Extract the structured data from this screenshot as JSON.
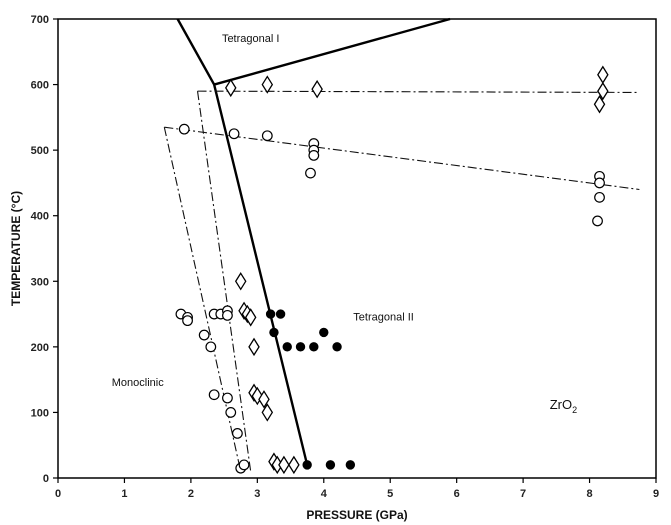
{
  "chart_data": {
    "type": "scatter",
    "xlabel": "PRESSURE (GPa)",
    "ylabel": "TEMPERATURE (°C)",
    "xlim": [
      0,
      9
    ],
    "ylim": [
      0,
      700
    ],
    "x_ticks": [
      "0",
      "1",
      "2",
      "3",
      "4",
      "5",
      "6",
      "7",
      "8",
      "9"
    ],
    "y_ticks": [
      "0",
      "100",
      "200",
      "300",
      "400",
      "500",
      "600",
      "700"
    ],
    "grid": false,
    "annotations": [
      {
        "text": "Tetragonal I",
        "x": 2.9,
        "y": 665
      },
      {
        "text": "Tetragonal II",
        "x": 4.9,
        "y": 240
      },
      {
        "text": "Monoclinic",
        "x": 1.2,
        "y": 140
      }
    ],
    "compound": {
      "main": "ZrO",
      "sub": "2",
      "x": 7.4,
      "y": 105
    },
    "phase_boundaries": [
      {
        "style": "solid",
        "points": [
          [
            1.8,
            700
          ],
          [
            2.35,
            600
          ],
          [
            3.75,
            20
          ]
        ]
      },
      {
        "style": "solid",
        "points": [
          [
            2.35,
            600
          ],
          [
            5.9,
            700
          ]
        ]
      }
    ],
    "dash_dot_lines": [
      {
        "points": [
          [
            2.1,
            590
          ],
          [
            8.75,
            588
          ]
        ]
      },
      {
        "points": [
          [
            2.1,
            590
          ],
          [
            2.9,
            10
          ]
        ]
      },
      {
        "points": [
          [
            1.6,
            535
          ],
          [
            8.75,
            440
          ]
        ]
      },
      {
        "points": [
          [
            1.6,
            535
          ],
          [
            2.75,
            10
          ]
        ]
      }
    ],
    "series": [
      {
        "marker": "open-circle",
        "points": [
          [
            1.9,
            532
          ],
          [
            2.65,
            525
          ],
          [
            3.15,
            522
          ],
          [
            3.85,
            510
          ],
          [
            3.85,
            500
          ],
          [
            3.85,
            492
          ],
          [
            3.8,
            465
          ],
          [
            8.15,
            460
          ],
          [
            8.15,
            450
          ],
          [
            8.15,
            428
          ],
          [
            8.12,
            392
          ],
          [
            1.85,
            250
          ],
          [
            1.95,
            245
          ],
          [
            1.95,
            240
          ],
          [
            2.2,
            218
          ],
          [
            2.3,
            200
          ],
          [
            2.35,
            250
          ],
          [
            2.45,
            250
          ],
          [
            2.55,
            255
          ],
          [
            2.55,
            248
          ],
          [
            2.35,
            127
          ],
          [
            2.55,
            122
          ],
          [
            2.6,
            100
          ],
          [
            2.7,
            68
          ],
          [
            2.75,
            15
          ],
          [
            2.8,
            20
          ]
        ]
      },
      {
        "marker": "open-diamond",
        "points": [
          [
            2.6,
            595
          ],
          [
            3.15,
            600
          ],
          [
            3.9,
            593
          ],
          [
            8.2,
            615
          ],
          [
            8.2,
            590
          ],
          [
            8.15,
            570
          ],
          [
            2.75,
            300
          ],
          [
            2.8,
            255
          ],
          [
            2.85,
            250
          ],
          [
            2.9,
            245
          ],
          [
            2.95,
            200
          ],
          [
            2.95,
            130
          ],
          [
            3.0,
            125
          ],
          [
            3.1,
            120
          ],
          [
            3.15,
            100
          ],
          [
            3.25,
            25
          ],
          [
            3.3,
            20
          ],
          [
            3.4,
            20
          ],
          [
            3.55,
            20
          ]
        ]
      },
      {
        "marker": "filled-circle",
        "points": [
          [
            3.2,
            250
          ],
          [
            3.35,
            250
          ],
          [
            3.25,
            222
          ],
          [
            3.45,
            200
          ],
          [
            3.65,
            200
          ],
          [
            3.85,
            200
          ],
          [
            4.0,
            222
          ],
          [
            4.2,
            200
          ],
          [
            3.75,
            20
          ],
          [
            4.1,
            20
          ],
          [
            4.4,
            20
          ]
        ]
      }
    ]
  }
}
